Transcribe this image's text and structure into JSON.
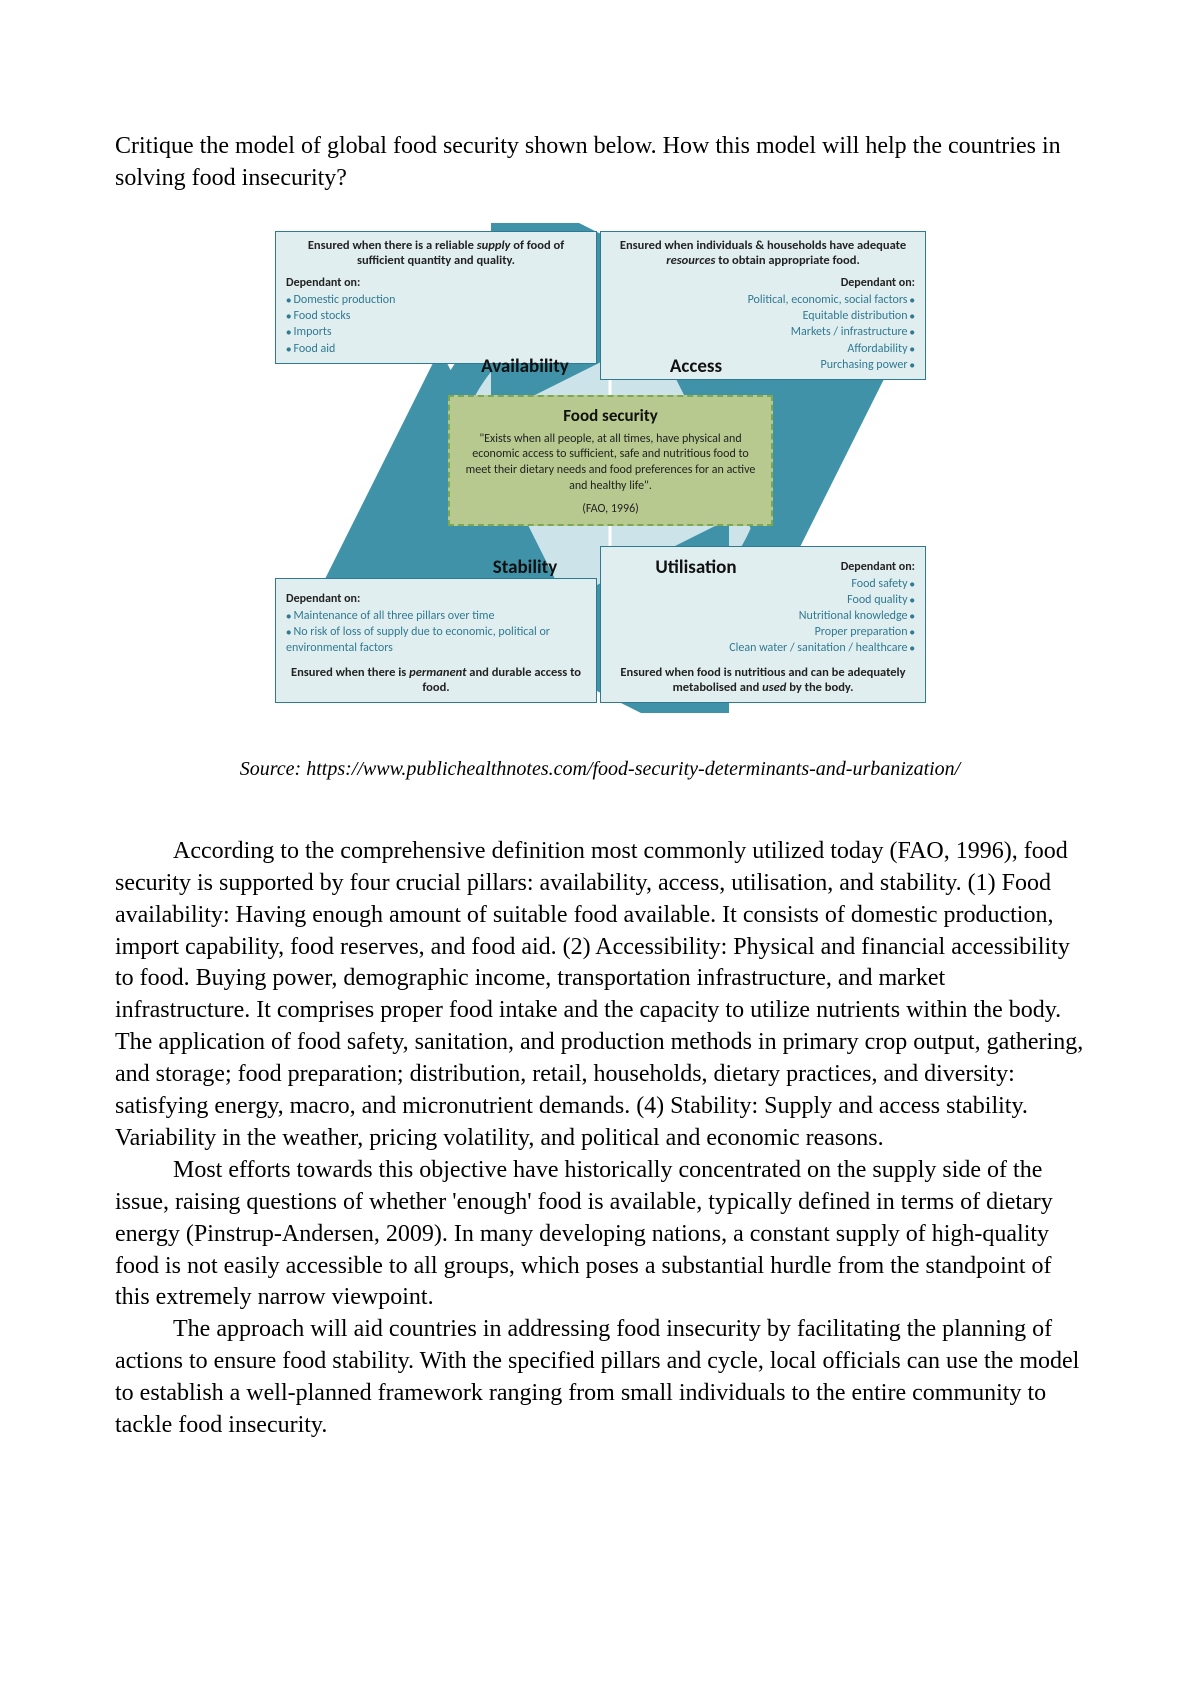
{
  "question": "Critique the model of global food security shown below. How this model will help the countries in solving food insecurity?",
  "diagram": {
    "colors": {
      "box_bg": "#e1eef0",
      "box_border": "#2f7a91",
      "ring_outer": "#3f92a8",
      "ring_outer_light": "#6cb0c1",
      "center_bg": "#b7c98f",
      "center_border": "#7ea84f",
      "bullet_text": "#2f7a91"
    },
    "pillars": {
      "availability": {
        "label": "Availability",
        "ensured_html": "Ensured when there is a reliable <em>supply</em> of food of sufficient quantity and quality.",
        "dep_heading": "Dependant on:",
        "deps": [
          "Domestic production",
          "Food stocks",
          "Imports",
          "Food aid"
        ]
      },
      "access": {
        "label": "Access",
        "ensured_html": "Ensured when individuals & households have adequate <em>resources</em> to obtain appropriate food.",
        "dep_heading": "Dependant on:",
        "deps": [
          "Political, economic, social factors",
          "Equitable distribution",
          "Markets / infrastructure",
          "Affordability",
          "Purchasing power"
        ]
      },
      "stability": {
        "label": "Stability",
        "ensured_html": "Ensured when there is <em>permanent</em> and durable access to food.",
        "dep_heading": "Dependant on:",
        "deps": [
          "Maintenance of all three pillars over time",
          "No risk of loss of supply due to economic, political or environmental factors"
        ]
      },
      "utilisation": {
        "label": "Utilisation",
        "ensured_html": "Ensured when food is nutritious and can be adequately metabolised and <em>used</em> by the body.",
        "dep_heading": "Dependant on:",
        "deps": [
          "Food safety",
          "Food quality",
          "Nutritional knowledge",
          "Proper preparation",
          "Clean water / sanitation / healthcare"
        ]
      }
    },
    "center": {
      "title": "Food security",
      "definition": "\"Exists when all people, at all times, have physical and economic access to sufficient, safe and nutritious food to meet their dietary needs and food preferences for an active and healthy life\".",
      "source": "(FAO, 1996)"
    }
  },
  "source_line": "Source: https://www.publichealthnotes.com/food-security-determinants-and-urbanization/",
  "paragraphs": [
    "According to the comprehensive definition most commonly utilized today (FAO, 1996), food security is supported by four crucial pillars: availability, access, utilisation, and stability. (1) Food availability: Having enough amount of suitable food available. It consists of domestic production, import capability, food reserves, and food aid. (2) Accessibility: Physical and financial accessibility to food.  Buying power, demographic income, transportation infrastructure, and market infrastructure. It comprises proper food intake and the capacity to utilize nutrients within the body. The application of food safety, sanitation, and production methods in primary crop output, gathering, and storage; food preparation; distribution, retail, households, dietary practices, and diversity: satisfying energy, macro, and micronutrient demands. (4) Stability: Supply and access stability. Variability in the weather, pricing volatility, and political and economic reasons.",
    "Most efforts towards this objective have historically concentrated on the supply side of the issue, raising questions of whether 'enough' food is available, typically defined in terms of dietary energy (Pinstrup-Andersen, 2009). In many developing nations, a constant supply of high-quality food is not easily accessible to all groups, which poses a substantial hurdle from the standpoint of this extremely narrow viewpoint.",
    "The approach will aid countries in addressing food insecurity by facilitating the planning of actions to ensure food stability. With the specified pillars and cycle, local officials can use the model to establish a well-planned framework ranging from small individuals to the entire community to tackle food insecurity."
  ]
}
